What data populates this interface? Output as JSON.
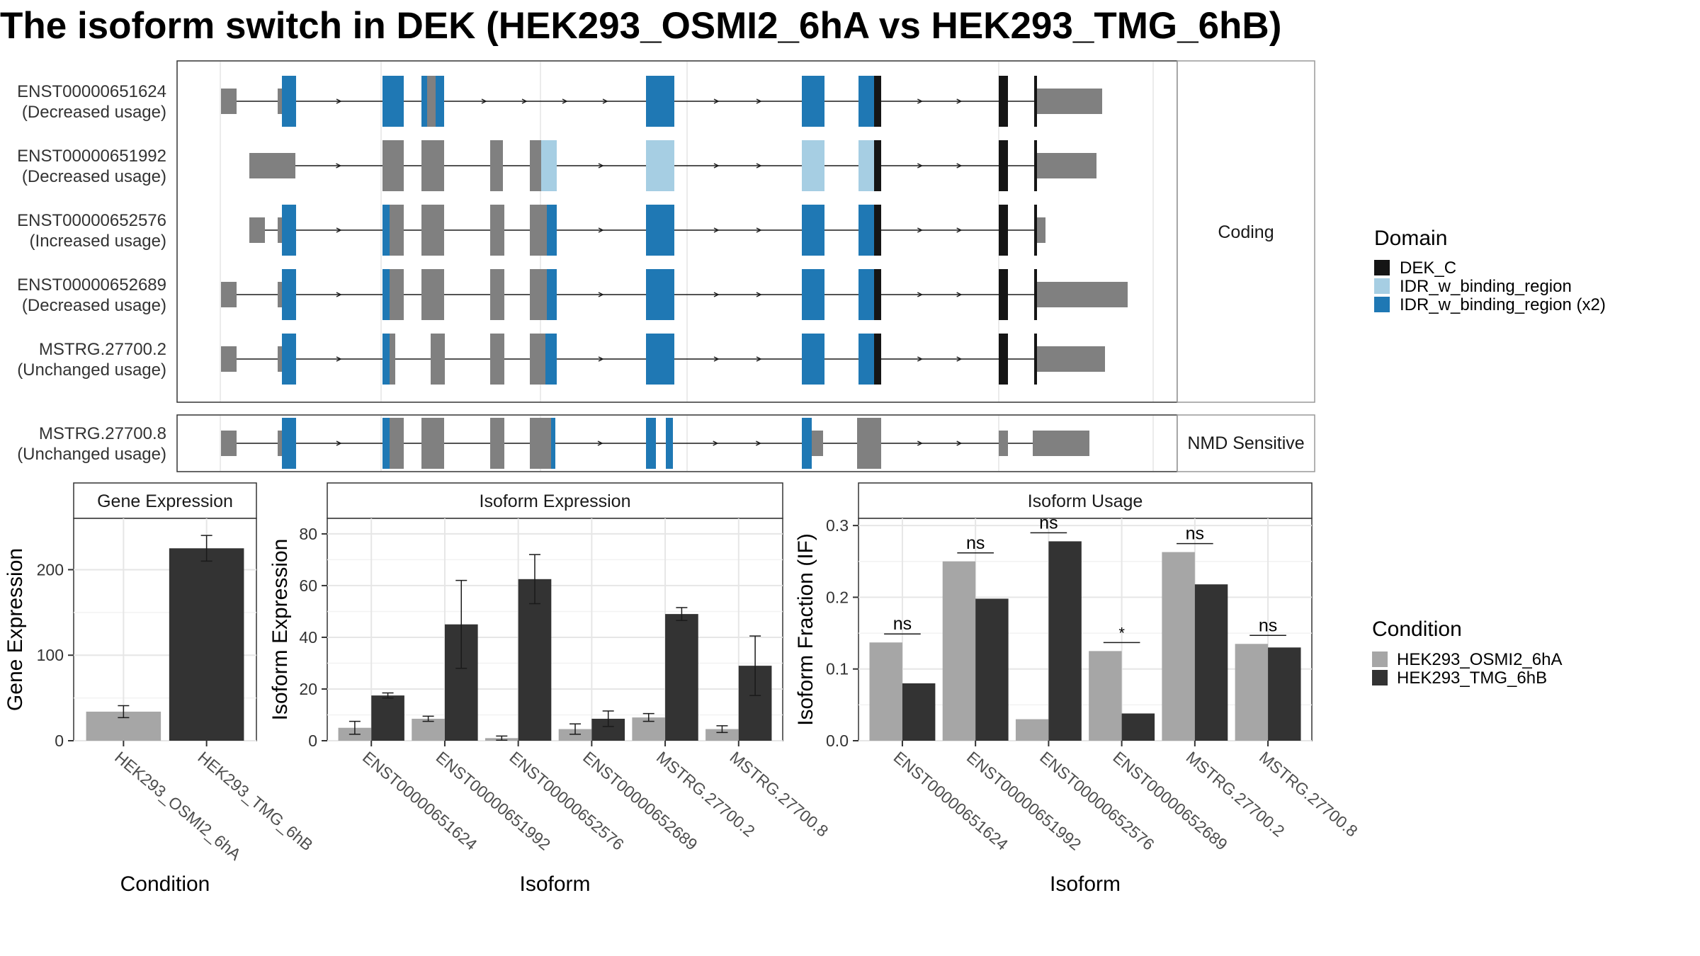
{
  "title": "The isoform switch in DEK (HEK293_OSMI2_6hA vs HEK293_TMG_6hB)",
  "colors": {
    "DEK_C": "#151515",
    "IDR_w_binding_region": "#a6cee3",
    "IDR_w_binding_region (x2)": "#1f78b4",
    "utr": "#808080",
    "cond_A": "#a6a6a6",
    "cond_B": "#333333"
  },
  "structure_panel": {
    "coding_strip": "Coding",
    "nmd_strip": "NMD Sensitive",
    "coding_transcripts": [
      {
        "id": "ENST00000651624",
        "usage": "(Decreased usage)"
      },
      {
        "id": "ENST00000651992",
        "usage": "(Decreased usage)"
      },
      {
        "id": "ENST00000652576",
        "usage": "(Increased usage)"
      },
      {
        "id": "ENST00000652689",
        "usage": "(Decreased usage)"
      },
      {
        "id": "MSTRG.27700.2",
        "usage": "(Unchanged usage)"
      }
    ],
    "nmd_transcripts": [
      {
        "id": "MSTRG.27700.8",
        "usage": "(Unchanged usage)"
      }
    ]
  },
  "domain_legend": {
    "title": "Domain",
    "items": [
      "DEK_C",
      "IDR_w_binding_region",
      "IDR_w_binding_region (x2)"
    ]
  },
  "condition_legend": {
    "title": "Condition",
    "items": [
      "HEK293_OSMI2_6hA",
      "HEK293_TMG_6hB"
    ]
  },
  "chart_data": [
    {
      "type": "bar",
      "title": "Gene Expression",
      "xlabel": "Condition",
      "ylabel": "Gene Expression",
      "categories": [
        "HEK293_OSMI2_6hA",
        "HEK293_TMG_6hB"
      ],
      "values": [
        34,
        225
      ],
      "errors": [
        7,
        15
      ],
      "ylim": [
        0,
        260
      ],
      "yticks": [
        0,
        100,
        200
      ]
    },
    {
      "type": "bar",
      "title": "Isoform Expression",
      "xlabel": "Isoform",
      "ylabel": "Isoform Expression",
      "categories": [
        "ENST00000651624",
        "ENST00000651992",
        "ENST00000652576",
        "ENST00000652689",
        "MSTRG.27700.2",
        "MSTRG.27700.8"
      ],
      "series": [
        {
          "name": "HEK293_OSMI2_6hA",
          "values": [
            5,
            8.5,
            1,
            4.5,
            9,
            4.5
          ],
          "errors": [
            2.5,
            1,
            0.8,
            2,
            1.5,
            1.3
          ]
        },
        {
          "name": "HEK293_TMG_6hB",
          "values": [
            17.5,
            45,
            62.5,
            8.5,
            49,
            29
          ],
          "errors": [
            1,
            17,
            9.5,
            3,
            2.5,
            11.5
          ]
        }
      ],
      "ylim": [
        0,
        86
      ],
      "yticks": [
        0,
        20,
        40,
        60,
        80
      ]
    },
    {
      "type": "bar",
      "title": "Isoform Usage",
      "xlabel": "Isoform",
      "ylabel": "Isoform Fraction (IF)",
      "categories": [
        "ENST00000651624",
        "ENST00000651992",
        "ENST00000652576",
        "ENST00000652689",
        "MSTRG.27700.2",
        "MSTRG.27700.8"
      ],
      "series": [
        {
          "name": "HEK293_OSMI2_6hA",
          "values": [
            0.137,
            0.25,
            0.03,
            0.125,
            0.263,
            0.135
          ]
        },
        {
          "name": "HEK293_TMG_6hB",
          "values": [
            0.08,
            0.198,
            0.278,
            0.038,
            0.218,
            0.13
          ]
        }
      ],
      "significance": [
        "ns",
        "ns",
        "ns",
        "*",
        "ns",
        "ns"
      ],
      "ylim": [
        0,
        0.31
      ],
      "yticks": [
        "0.0",
        "0.1",
        "0.2",
        "0.3"
      ]
    }
  ]
}
